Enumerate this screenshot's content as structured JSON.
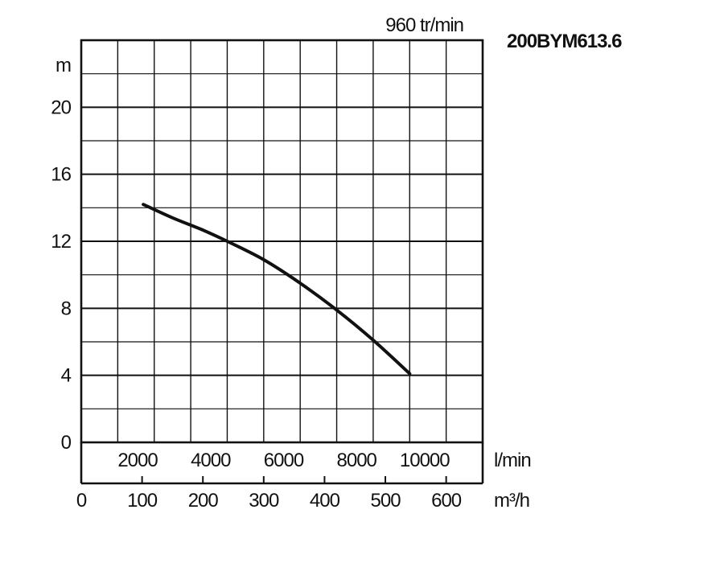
{
  "chart_data": {
    "type": "line",
    "title": "200BYM613.6",
    "subtitle": "960 tr/min",
    "ylabel": "m",
    "xlabel": "l/min",
    "x2label": "m³/h",
    "ylim": [
      0,
      24
    ],
    "xlim": [
      0,
      11000
    ],
    "y_ticks": [
      0,
      4,
      8,
      12,
      16,
      20
    ],
    "x_ticks": [
      2000,
      4000,
      6000,
      8000,
      10000
    ],
    "x2_ticks": [
      0,
      100,
      200,
      300,
      400,
      500,
      600
    ],
    "x2_range": [
      0,
      660
    ],
    "grid": true,
    "series": [
      {
        "x": [
          1700,
          2500,
          3300,
          4000,
          5000,
          6000,
          7000,
          8000,
          9000
        ],
        "y": [
          14.2,
          13.4,
          12.7,
          12.0,
          10.9,
          9.5,
          7.9,
          6.1,
          4.1
        ]
      }
    ]
  }
}
